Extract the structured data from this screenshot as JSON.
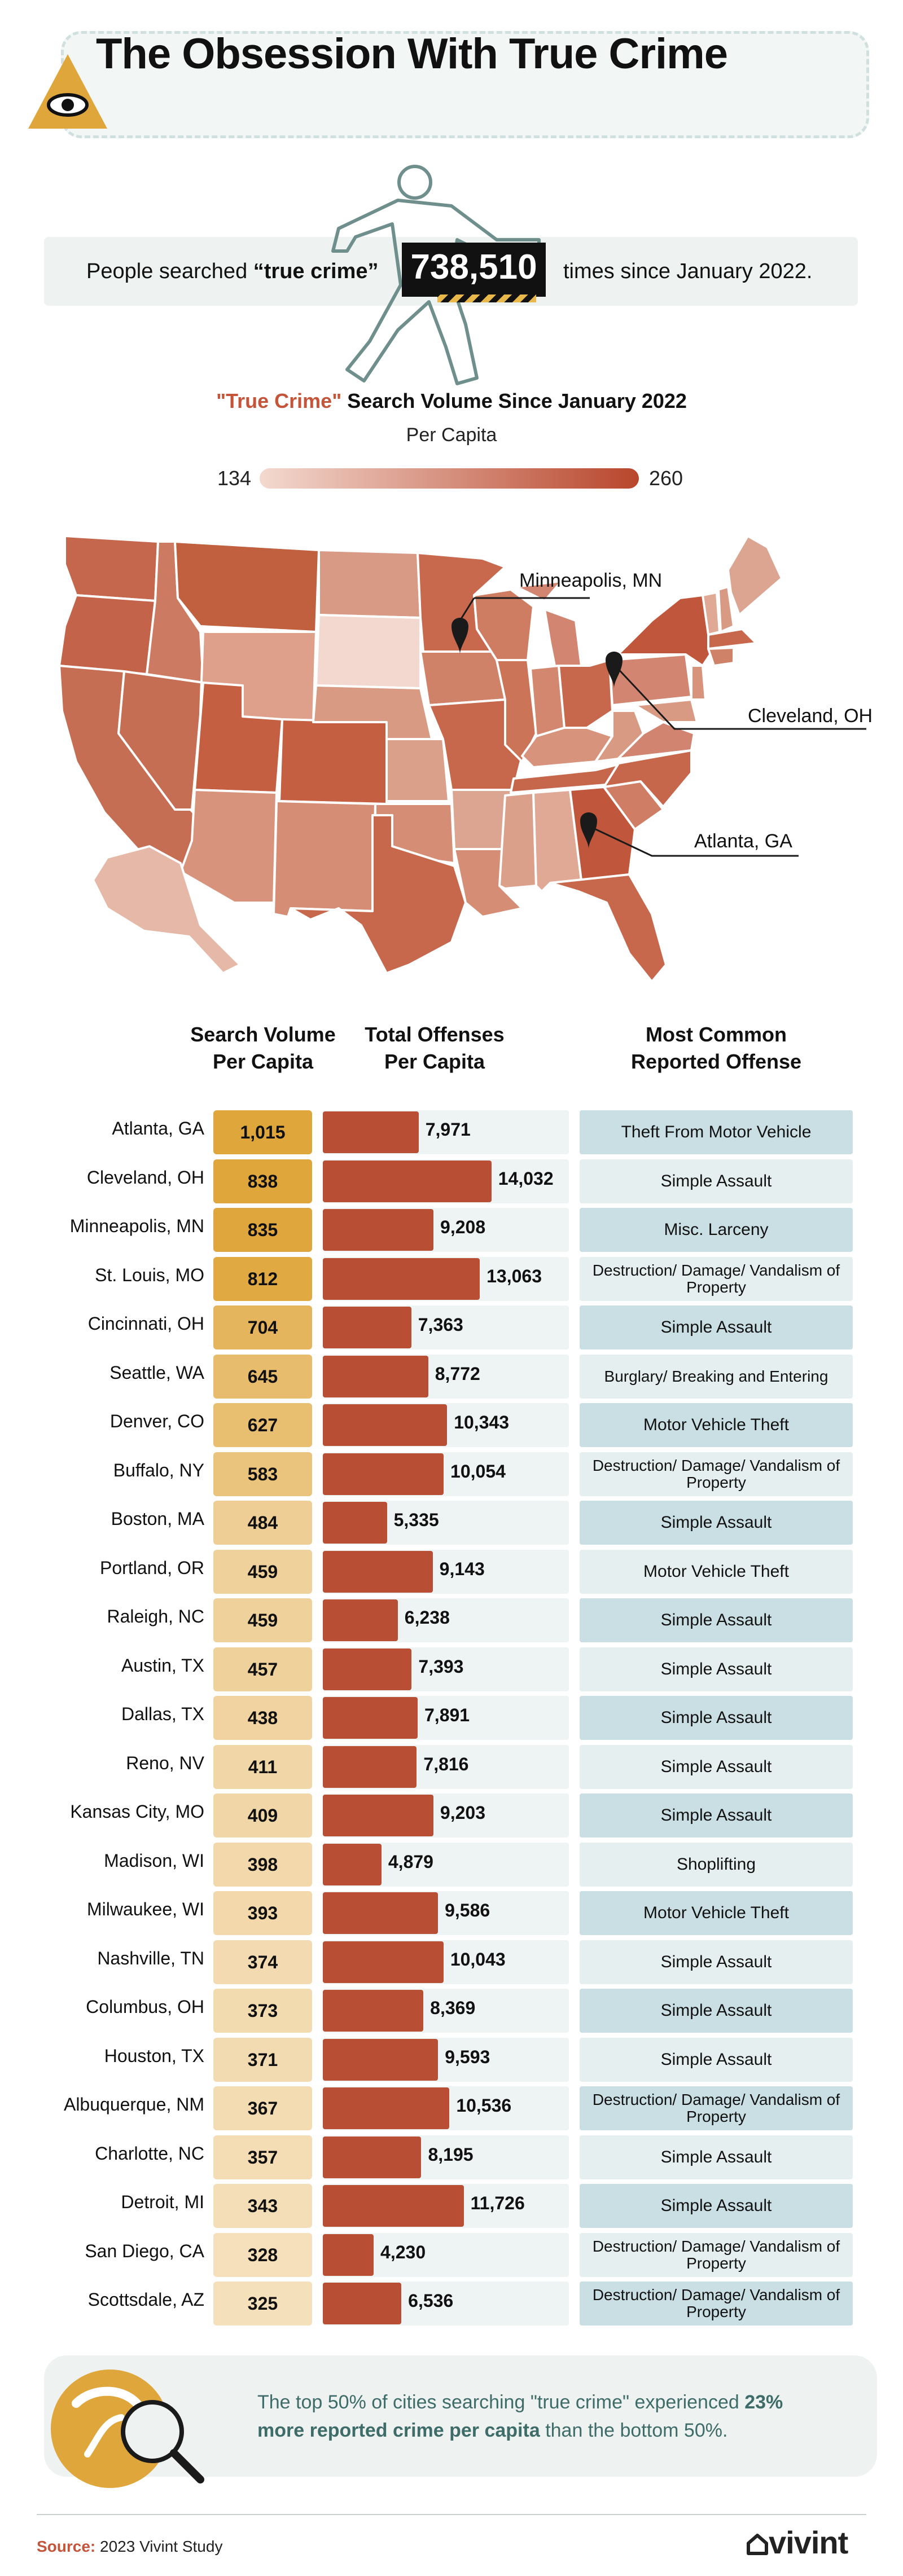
{
  "header": {
    "title": "The Obsession With True Crime",
    "icon": "eye-icon"
  },
  "search_count": {
    "prefix": "People searched",
    "term": "“true crime”",
    "value": "738,510",
    "suffix": "times since January 2022."
  },
  "map": {
    "title_accent": "\"True Crime\"",
    "title_rest": " Search Volume Since January 2022",
    "subtitle": "Per Capita",
    "scale_min": "134",
    "scale_max": "260",
    "pins": [
      {
        "label": "Minneapolis, MN"
      },
      {
        "label": "Cleveland, OH"
      },
      {
        "label": "Atlanta, GA"
      }
    ]
  },
  "colors": {
    "accent": "#c4553a",
    "bar": "#b84e34",
    "gold_strong": "#dfa63c",
    "gold_light": "#f5e0bc",
    "teal_row": "#c9dfe3",
    "teal_light": "#e6eff0"
  },
  "table": {
    "headers": {
      "search_volume": [
        "Search Volume",
        "Per Capita"
      ],
      "total_offenses": [
        "Total Offenses",
        "Per Capita"
      ],
      "common_offense": [
        "Most Common",
        "Reported Offense"
      ]
    }
  },
  "chart_data": {
    "type": "bar",
    "title": "",
    "categories": [
      "Atlanta, GA",
      "Cleveland, OH",
      "Minneapolis, MN",
      "St. Louis, MO",
      "Cincinnati, OH",
      "Seattle, WA",
      "Denver, CO",
      "Buffalo, NY",
      "Boston, MA",
      "Portland, OR",
      "Raleigh, NC",
      "Austin, TX",
      "Dallas, TX",
      "Reno, NV",
      "Kansas City, MO",
      "Madison, WI",
      "Milwaukee, WI",
      "Nashville, TN",
      "Columbus, OH",
      "Houston, TX",
      "Albuquerque, NM",
      "Charlotte, NC",
      "Detroit, MI",
      "San Diego, CA",
      "Scottsdale, AZ"
    ],
    "series": [
      {
        "name": "Search Volume Per Capita",
        "values": [
          1015,
          838,
          835,
          812,
          704,
          645,
          627,
          583,
          484,
          459,
          459,
          457,
          438,
          411,
          409,
          398,
          393,
          374,
          373,
          371,
          367,
          357,
          343,
          328,
          325
        ]
      },
      {
        "name": "Total Offenses Per Capita",
        "values": [
          7971,
          14032,
          9208,
          13063,
          7363,
          8772,
          10343,
          10054,
          5335,
          9143,
          6238,
          7393,
          7891,
          7816,
          9203,
          4879,
          9586,
          10043,
          8369,
          9593,
          10536,
          8195,
          11726,
          4230,
          6536
        ]
      }
    ],
    "most_common_offense": [
      "Theft From Motor Vehicle",
      "Simple Assault",
      "Misc. Larceny",
      "Destruction/ Damage/ Vandalism of Property",
      "Simple Assault",
      "Burglary/ Breaking and Entering",
      "Motor Vehicle Theft",
      "Destruction/ Damage/ Vandalism of Property",
      "Simple Assault",
      "Motor Vehicle Theft",
      "Simple Assault",
      "Simple Assault",
      "Simple Assault",
      "Simple Assault",
      "Simple Assault",
      "Shoplifting",
      "Motor Vehicle Theft",
      "Simple Assault",
      "Simple Assault",
      "Simple Assault",
      "Destruction/ Damage/ Vandalism of Property",
      "Simple Assault",
      "Simple Assault",
      "Destruction/ Damage/ Vandalism of Property",
      "Destruction/ Damage/ Vandalism of Property"
    ],
    "value_labels": {
      "search_volume": [
        "1,015",
        "838",
        "835",
        "812",
        "704",
        "645",
        "627",
        "583",
        "484",
        "459",
        "459",
        "457",
        "438",
        "411",
        "409",
        "398",
        "393",
        "374",
        "373",
        "371",
        "367",
        "357",
        "343",
        "328",
        "325"
      ],
      "total_offenses": [
        "7,971",
        "14,032",
        "9,208",
        "13,063",
        "7,363",
        "8,772",
        "10,343",
        "10,054",
        "5,335",
        "9,143",
        "6,238",
        "7,393",
        "7,891",
        "7,816",
        "9,203",
        "4,879",
        "9,586",
        "10,043",
        "8,369",
        "9,593",
        "10,536",
        "8,195",
        "11,726",
        "4,230",
        "6,536"
      ]
    },
    "xlim": [
      0,
      15500
    ]
  },
  "insight": {
    "text_before": "The top 50% of cities searching \"true crime\" experienced ",
    "text_bold": "23% more reported crime per capita",
    "text_after": " than the bottom 50%."
  },
  "footer": {
    "source_label": "Source:",
    "source_text": " 2023 Vivint Study",
    "brand": "vivint"
  }
}
